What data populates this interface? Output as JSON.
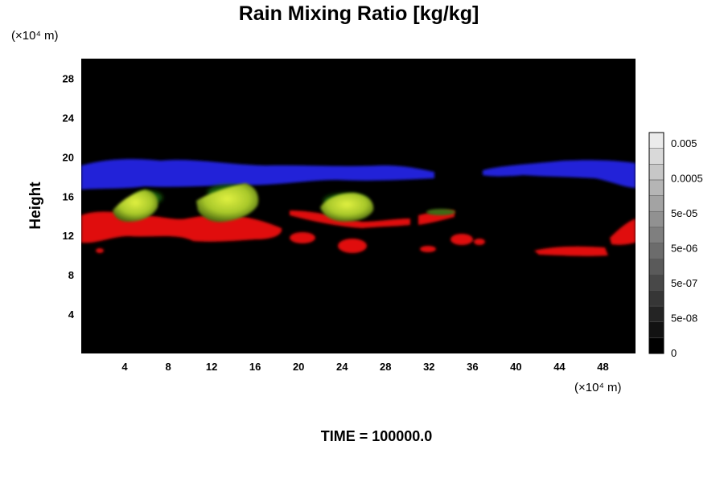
{
  "chart_data": {
    "type": "heatmap",
    "title": "Rain Mixing Ratio [kg/kg]",
    "xlabel": "",
    "ylabel": "Height",
    "x_unit_label": "(×10⁴ m)",
    "y_unit_label": "(×10⁴ m)",
    "footer": "TIME = 100000.0",
    "xlim": [
      0,
      51
    ],
    "ylim": [
      0,
      30
    ],
    "x_ticks": [
      4,
      8,
      12,
      16,
      20,
      24,
      28,
      32,
      36,
      40,
      44,
      48
    ],
    "y_ticks": [
      4,
      8,
      12,
      16,
      20,
      24,
      28
    ],
    "grid": false,
    "background_color": "#000000",
    "colorbar": {
      "position": "right",
      "labels": [
        "0.005",
        "0.0005",
        "5e-05",
        "5e-06",
        "5e-07",
        "5e-08",
        "0"
      ],
      "levels": 14
    },
    "features": [
      {
        "color": "#2222dd",
        "x_range": [
          0,
          51
        ],
        "y_range": [
          16.5,
          19.5
        ],
        "description_color": "blue"
      },
      {
        "color": "#e01010",
        "x_range": [
          0,
          51
        ],
        "y_range": [
          10,
          15.5
        ],
        "description_color": "red"
      },
      {
        "color": "#b6d233",
        "x_range": [
          3,
          27
        ],
        "y_range": [
          13,
          17
        ],
        "description_color": "yellow-green"
      }
    ]
  }
}
